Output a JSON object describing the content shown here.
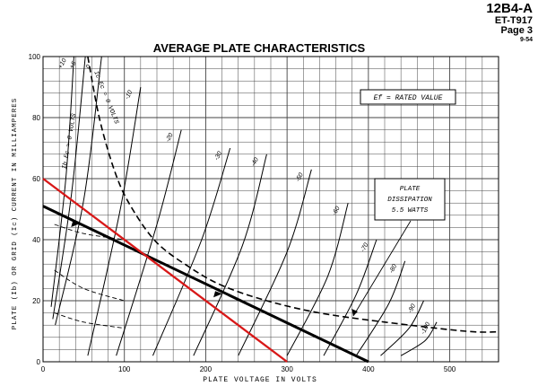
{
  "header": {
    "tube_type": "12B4-A",
    "code": "ET-T917",
    "page": "Page 3",
    "date": "9-54"
  },
  "chart_data": {
    "type": "line",
    "title": "AVERAGE PLATE CHARACTERISTICS",
    "xlabel": "PLATE VOLTAGE IN VOLTS",
    "ylabel": "PLATE (Ib) OR GRID (Ic) CURRENT IN MILLIAMPERES",
    "xlim": [
      0,
      560
    ],
    "ylim": [
      0,
      100
    ],
    "x_ticks": [
      0,
      100,
      200,
      300,
      400,
      500
    ],
    "y_ticks": [
      0,
      20,
      40,
      60,
      80,
      100
    ],
    "grid": true,
    "annotations": {
      "ef": "Ef = RATED VALUE",
      "plate_dissipation": [
        "PLATE",
        "DISSIPATION",
        "5.5 WATTS"
      ],
      "ib_label": "Ib",
      "ic_label": "Ic",
      "ec_zero_ib": "Ec = 0 VOLTS",
      "ec_zero_ic": "Ec = 0 VOLTS"
    },
    "grid_voltage_curves": [
      {
        "label": "+10",
        "points": [
          [
            10,
            18
          ],
          [
            28,
            60
          ],
          [
            38,
            100
          ]
        ]
      },
      {
        "label": "+5",
        "points": [
          [
            12,
            14
          ],
          [
            35,
            55
          ],
          [
            52,
            100
          ]
        ]
      },
      {
        "label": "0",
        "points": [
          [
            15,
            12
          ],
          [
            50,
            53
          ],
          [
            72,
            100
          ]
        ]
      },
      {
        "label": "-10",
        "points": [
          [
            55,
            2
          ],
          [
            95,
            50
          ],
          [
            120,
            90
          ]
        ]
      },
      {
        "label": "-20",
        "points": [
          [
            90,
            2
          ],
          [
            140,
            45
          ],
          [
            170,
            76
          ]
        ]
      },
      {
        "label": "-30",
        "points": [
          [
            135,
            2
          ],
          [
            195,
            40
          ],
          [
            230,
            70
          ]
        ]
      },
      {
        "label": "-40",
        "points": [
          [
            185,
            2
          ],
          [
            245,
            38
          ],
          [
            275,
            68
          ]
        ]
      },
      {
        "label": "-50",
        "points": [
          [
            240,
            2
          ],
          [
            300,
            36
          ],
          [
            330,
            63
          ]
        ]
      },
      {
        "label": "-60",
        "points": [
          [
            300,
            2
          ],
          [
            350,
            28
          ],
          [
            375,
            52
          ]
        ]
      },
      {
        "label": "-70",
        "points": [
          [
            345,
            2
          ],
          [
            385,
            22
          ],
          [
            410,
            40
          ]
        ]
      },
      {
        "label": "-80",
        "points": [
          [
            385,
            2
          ],
          [
            425,
            19
          ],
          [
            445,
            33
          ]
        ]
      },
      {
        "label": "-90",
        "points": [
          [
            415,
            2
          ],
          [
            450,
            11
          ],
          [
            468,
            20
          ]
        ]
      },
      {
        "label": "-100",
        "points": [
          [
            440,
            2
          ],
          [
            470,
            7
          ],
          [
            484,
            13
          ]
        ]
      }
    ],
    "grid_current_curves": [
      {
        "label": "+10",
        "points": [
          [
            14,
            45
          ],
          [
            50,
            42
          ],
          [
            100,
            40
          ]
        ]
      },
      {
        "label": "+5",
        "points": [
          [
            14,
            30
          ],
          [
            50,
            24
          ],
          [
            100,
            20
          ]
        ]
      },
      {
        "label": "0",
        "points": [
          [
            14,
            16
          ],
          [
            50,
            13
          ],
          [
            100,
            11
          ]
        ]
      }
    ],
    "plate_dissipation_curve": {
      "label": "5.5 WATTS",
      "points": [
        [
          55,
          100
        ],
        [
          70,
          79
        ],
        [
          90,
          61
        ],
        [
          110,
          50
        ],
        [
          140,
          39
        ],
        [
          180,
          31
        ],
        [
          220,
          25
        ],
        [
          275,
          20
        ],
        [
          340,
          16
        ],
        [
          420,
          13
        ],
        [
          520,
          10
        ],
        [
          560,
          9.8
        ]
      ]
    },
    "load_lines": [
      {
        "name": "black",
        "color": "#000000",
        "points": [
          [
            0,
            51
          ],
          [
            400,
            0
          ]
        ]
      },
      {
        "name": "red",
        "color": "#d81818",
        "points": [
          [
            0,
            60
          ],
          [
            300,
            0
          ]
        ]
      }
    ],
    "operating_points": [
      {
        "x": 40,
        "y": 45
      },
      {
        "x": 215,
        "y": 22
      }
    ],
    "colors": {
      "load_line_red": "#d81818",
      "grid_line": "#444444"
    }
  }
}
